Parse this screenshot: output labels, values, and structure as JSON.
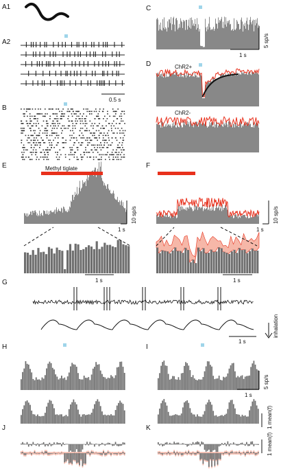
{
  "panels": {
    "A1": "A1",
    "A2": "A2",
    "B": "B",
    "C": "C",
    "D": "D",
    "E": "E",
    "F": "F",
    "G": "G",
    "H": "H",
    "I": "I",
    "J": "J",
    "K": "K"
  },
  "labels": {
    "scale_05s": "0.5 s",
    "scale_1s": "1 s",
    "scale_5sps": "5 sp/s",
    "scale_10sps": "10 sp/s",
    "chr2_pos": "ChR2+",
    "chr2_neg": "ChR2-",
    "methyl_tiglate": "Methyl tiglate",
    "inhalation": "inhalation",
    "mean_f": "1 mean(f)"
  },
  "colors": {
    "bars": "#6e6e6e",
    "trace": "#222222",
    "red": "#e8301c",
    "pink": "#f6b7a8",
    "light_blue": "#9fd5ea"
  },
  "icons": {
    "light-pulse": "light-blue-square",
    "inhalation-arrow": "down-arrow"
  }
}
